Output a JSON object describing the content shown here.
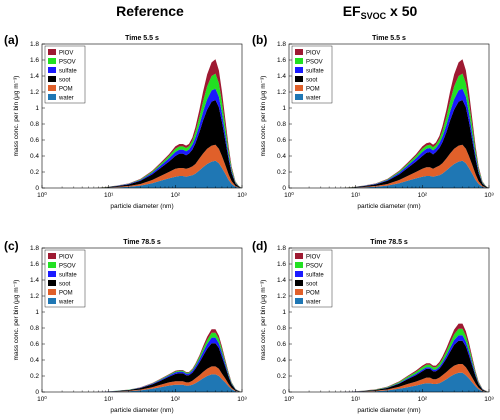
{
  "column_titles": {
    "left": "Reference",
    "right_main": "EF",
    "right_sub": "SVOC",
    "right_suffix": " x 50"
  },
  "colors": {
    "water": "#1f77b4",
    "POM": "#e0602a",
    "soot": "#000000",
    "sulfate": "#1a1aff",
    "PSOV": "#22e022",
    "PIOV": "#9e1a32"
  },
  "chart_data": [
    {
      "type": "area",
      "panel": "(a)",
      "title": "Time 5.5 s",
      "xlabel": "particle diameter (nm)",
      "ylabel": "mass conc. per bin (μg m⁻³)",
      "xscale": "log",
      "xlim": [
        1,
        1000
      ],
      "ylim": [
        0,
        1.8
      ],
      "xticks": [
        "10⁰",
        "10¹",
        "10²",
        "10³"
      ],
      "yticks": [
        "0",
        "0.2",
        "0.4",
        "0.6",
        "0.8",
        "1",
        "1.2",
        "1.4",
        "1.6",
        "1.8"
      ],
      "legend": [
        "PIOV",
        "PSOV",
        "sulfate",
        "soot",
        "POM",
        "water"
      ],
      "legend_position": "top-left",
      "diameter": [
        6,
        9,
        13,
        20,
        30,
        45,
        60,
        80,
        100,
        115,
        130,
        145,
        160,
        180,
        200,
        230,
        260,
        300,
        350,
        400,
        450,
        500,
        560,
        630,
        700,
        800,
        900,
        1000
      ],
      "series": [
        {
          "name": "water",
          "values": [
            0,
            0.003,
            0.008,
            0.015,
            0.03,
            0.06,
            0.09,
            0.12,
            0.14,
            0.15,
            0.15,
            0.14,
            0.15,
            0.16,
            0.18,
            0.22,
            0.26,
            0.3,
            0.33,
            0.34,
            0.31,
            0.25,
            0.18,
            0.1,
            0.05,
            0.015,
            0.005,
            0
          ]
        },
        {
          "name": "POM",
          "values": [
            0,
            0.002,
            0.005,
            0.01,
            0.02,
            0.04,
            0.06,
            0.08,
            0.1,
            0.1,
            0.1,
            0.1,
            0.1,
            0.11,
            0.12,
            0.15,
            0.17,
            0.19,
            0.2,
            0.2,
            0.18,
            0.15,
            0.11,
            0.07,
            0.035,
            0.01,
            0.003,
            0
          ]
        },
        {
          "name": "soot",
          "values": [
            0,
            0.004,
            0.01,
            0.02,
            0.04,
            0.07,
            0.1,
            0.13,
            0.16,
            0.18,
            0.18,
            0.17,
            0.18,
            0.21,
            0.26,
            0.33,
            0.41,
            0.49,
            0.55,
            0.56,
            0.52,
            0.43,
            0.31,
            0.19,
            0.1,
            0.03,
            0.01,
            0
          ]
        },
        {
          "name": "sulfate",
          "values": [
            0,
            0.001,
            0.003,
            0.006,
            0.01,
            0.02,
            0.03,
            0.04,
            0.05,
            0.05,
            0.05,
            0.05,
            0.05,
            0.06,
            0.07,
            0.09,
            0.11,
            0.13,
            0.14,
            0.14,
            0.13,
            0.11,
            0.08,
            0.05,
            0.025,
            0.008,
            0.002,
            0
          ]
        },
        {
          "name": "PSOV",
          "values": [
            0,
            0.001,
            0.002,
            0.004,
            0.008,
            0.015,
            0.02,
            0.03,
            0.04,
            0.04,
            0.04,
            0.04,
            0.04,
            0.05,
            0.07,
            0.1,
            0.13,
            0.16,
            0.18,
            0.19,
            0.17,
            0.14,
            0.1,
            0.06,
            0.03,
            0.01,
            0.003,
            0
          ]
        },
        {
          "name": "PIOV",
          "values": [
            0,
            0.001,
            0.002,
            0.003,
            0.006,
            0.01,
            0.015,
            0.02,
            0.03,
            0.03,
            0.03,
            0.03,
            0.03,
            0.04,
            0.06,
            0.09,
            0.12,
            0.15,
            0.17,
            0.18,
            0.16,
            0.13,
            0.09,
            0.05,
            0.025,
            0.008,
            0.002,
            0
          ]
        }
      ]
    },
    {
      "type": "area",
      "panel": "(b)",
      "title": "Time 5.5 s",
      "xlabel": "particle diameter (nm)",
      "ylabel": "mass conc. per bin (μg m⁻³)",
      "xscale": "log",
      "xlim": [
        1,
        1000
      ],
      "ylim": [
        0,
        1.8
      ],
      "xticks": [
        "10⁰",
        "10¹",
        "10²",
        "10³"
      ],
      "yticks": [
        "0",
        "0.2",
        "0.4",
        "0.6",
        "0.8",
        "1",
        "1.2",
        "1.4",
        "1.6",
        "1.8"
      ],
      "legend": [
        "PIOV",
        "PSOV",
        "sulfate",
        "soot",
        "POM",
        "water"
      ],
      "legend_position": "top-left",
      "diameter": [
        6,
        9,
        13,
        20,
        30,
        45,
        60,
        80,
        100,
        115,
        130,
        145,
        160,
        180,
        200,
        230,
        260,
        300,
        350,
        400,
        450,
        500,
        560,
        630,
        700,
        800,
        900,
        1000
      ],
      "series": [
        {
          "name": "water",
          "values": [
            0,
            0.003,
            0.008,
            0.015,
            0.03,
            0.06,
            0.09,
            0.12,
            0.14,
            0.15,
            0.15,
            0.14,
            0.15,
            0.16,
            0.18,
            0.22,
            0.26,
            0.3,
            0.33,
            0.34,
            0.31,
            0.25,
            0.18,
            0.1,
            0.05,
            0.015,
            0.005,
            0
          ]
        },
        {
          "name": "POM",
          "values": [
            0,
            0.002,
            0.005,
            0.01,
            0.02,
            0.04,
            0.06,
            0.08,
            0.1,
            0.11,
            0.11,
            0.1,
            0.11,
            0.12,
            0.13,
            0.15,
            0.17,
            0.19,
            0.2,
            0.2,
            0.18,
            0.15,
            0.11,
            0.07,
            0.035,
            0.01,
            0.003,
            0
          ]
        },
        {
          "name": "soot",
          "values": [
            0,
            0.004,
            0.01,
            0.02,
            0.04,
            0.07,
            0.1,
            0.13,
            0.16,
            0.18,
            0.19,
            0.18,
            0.19,
            0.22,
            0.26,
            0.33,
            0.41,
            0.49,
            0.55,
            0.56,
            0.52,
            0.43,
            0.31,
            0.19,
            0.1,
            0.03,
            0.01,
            0
          ]
        },
        {
          "name": "sulfate",
          "values": [
            0,
            0.001,
            0.003,
            0.006,
            0.01,
            0.02,
            0.03,
            0.04,
            0.05,
            0.05,
            0.05,
            0.05,
            0.05,
            0.06,
            0.07,
            0.09,
            0.11,
            0.13,
            0.14,
            0.14,
            0.13,
            0.11,
            0.08,
            0.05,
            0.025,
            0.008,
            0.002,
            0
          ]
        },
        {
          "name": "PSOV",
          "values": [
            0,
            0.001,
            0.002,
            0.004,
            0.008,
            0.015,
            0.02,
            0.03,
            0.04,
            0.04,
            0.04,
            0.04,
            0.04,
            0.05,
            0.07,
            0.1,
            0.13,
            0.16,
            0.18,
            0.19,
            0.17,
            0.14,
            0.1,
            0.06,
            0.03,
            0.01,
            0.003,
            0
          ]
        },
        {
          "name": "PIOV",
          "values": [
            0,
            0.001,
            0.002,
            0.003,
            0.006,
            0.01,
            0.015,
            0.02,
            0.03,
            0.03,
            0.03,
            0.03,
            0.03,
            0.04,
            0.06,
            0.09,
            0.12,
            0.15,
            0.17,
            0.18,
            0.16,
            0.13,
            0.09,
            0.05,
            0.025,
            0.008,
            0.002,
            0
          ]
        }
      ]
    },
    {
      "type": "area",
      "panel": "(c)",
      "title": "Time 78.5 s",
      "xlabel": "particle diameter (nm)",
      "ylabel": "mass conc. per bin (μg m⁻³)",
      "xscale": "log",
      "xlim": [
        1,
        1000
      ],
      "ylim": [
        0,
        1.8
      ],
      "xticks": [
        "10⁰",
        "10¹",
        "10²",
        "10³"
      ],
      "yticks": [
        "0",
        "0.2",
        "0.4",
        "0.6",
        "0.8",
        "1",
        "1.2",
        "1.4",
        "1.6",
        "1.8"
      ],
      "legend": [
        "PIOV",
        "PSOV",
        "sulfate",
        "soot",
        "POM",
        "water"
      ],
      "legend_position": "top-left",
      "diameter": [
        6,
        9,
        13,
        20,
        30,
        45,
        60,
        80,
        100,
        115,
        130,
        145,
        160,
        180,
        200,
        230,
        260,
        300,
        350,
        400,
        450,
        500,
        560,
        630,
        700,
        800,
        900,
        1000
      ],
      "series": [
        {
          "name": "water",
          "values": [
            0,
            0.002,
            0.005,
            0.01,
            0.02,
            0.04,
            0.06,
            0.08,
            0.09,
            0.09,
            0.09,
            0.08,
            0.08,
            0.09,
            0.11,
            0.14,
            0.17,
            0.2,
            0.22,
            0.22,
            0.2,
            0.16,
            0.12,
            0.07,
            0.035,
            0.01,
            0.003,
            0
          ]
        },
        {
          "name": "POM",
          "values": [
            0,
            0.001,
            0.003,
            0.005,
            0.01,
            0.02,
            0.03,
            0.04,
            0.045,
            0.045,
            0.045,
            0.04,
            0.04,
            0.05,
            0.06,
            0.07,
            0.08,
            0.09,
            0.1,
            0.1,
            0.09,
            0.07,
            0.05,
            0.03,
            0.015,
            0.005,
            0.001,
            0
          ]
        },
        {
          "name": "soot",
          "values": [
            0,
            0.002,
            0.005,
            0.01,
            0.02,
            0.035,
            0.05,
            0.07,
            0.09,
            0.1,
            0.1,
            0.09,
            0.09,
            0.1,
            0.12,
            0.16,
            0.2,
            0.25,
            0.29,
            0.29,
            0.26,
            0.21,
            0.15,
            0.09,
            0.045,
            0.015,
            0.005,
            0
          ]
        },
        {
          "name": "sulfate",
          "values": [
            0,
            0.0005,
            0.001,
            0.002,
            0.004,
            0.008,
            0.012,
            0.016,
            0.02,
            0.02,
            0.02,
            0.02,
            0.02,
            0.025,
            0.03,
            0.04,
            0.05,
            0.06,
            0.07,
            0.07,
            0.06,
            0.05,
            0.035,
            0.02,
            0.01,
            0.004,
            0.001,
            0
          ]
        },
        {
          "name": "PSOV",
          "values": [
            0,
            0.0005,
            0.001,
            0.002,
            0.003,
            0.005,
            0.008,
            0.01,
            0.012,
            0.012,
            0.012,
            0.012,
            0.012,
            0.015,
            0.02,
            0.03,
            0.04,
            0.05,
            0.06,
            0.06,
            0.055,
            0.045,
            0.03,
            0.02,
            0.01,
            0.003,
            0.001,
            0
          ]
        },
        {
          "name": "PIOV",
          "values": [
            0,
            0.0005,
            0.001,
            0.001,
            0.002,
            0.004,
            0.005,
            0.006,
            0.008,
            0.008,
            0.008,
            0.008,
            0.008,
            0.01,
            0.015,
            0.02,
            0.03,
            0.04,
            0.045,
            0.045,
            0.04,
            0.035,
            0.025,
            0.015,
            0.007,
            0.002,
            0.001,
            0
          ]
        }
      ]
    },
    {
      "type": "area",
      "panel": "(d)",
      "title": "Time 78.5 s",
      "xlabel": "particle diameter (nm)",
      "ylabel": "mass conc. per bin (μg m⁻³)",
      "xscale": "log",
      "xlim": [
        1,
        1000
      ],
      "ylim": [
        0,
        1.8
      ],
      "xticks": [
        "10⁰",
        "10¹",
        "10²",
        "10³"
      ],
      "yticks": [
        "0",
        "0.2",
        "0.4",
        "0.6",
        "0.8",
        "1",
        "1.2",
        "1.4",
        "1.6",
        "1.8"
      ],
      "legend": [
        "PIOV",
        "PSOV",
        "sulfate",
        "soot",
        "POM",
        "water"
      ],
      "legend_position": "top-left",
      "diameter": [
        6,
        9,
        13,
        20,
        30,
        45,
        60,
        80,
        100,
        115,
        130,
        145,
        160,
        180,
        200,
        230,
        260,
        300,
        350,
        400,
        450,
        500,
        560,
        630,
        700,
        800,
        900,
        1000
      ],
      "series": [
        {
          "name": "water",
          "values": [
            0,
            0.002,
            0.005,
            0.01,
            0.02,
            0.04,
            0.06,
            0.08,
            0.1,
            0.11,
            0.11,
            0.1,
            0.1,
            0.11,
            0.13,
            0.16,
            0.19,
            0.22,
            0.24,
            0.24,
            0.21,
            0.17,
            0.12,
            0.07,
            0.035,
            0.01,
            0.003,
            0
          ]
        },
        {
          "name": "POM",
          "values": [
            0,
            0.001,
            0.003,
            0.006,
            0.012,
            0.025,
            0.04,
            0.05,
            0.06,
            0.07,
            0.07,
            0.06,
            0.06,
            0.07,
            0.08,
            0.09,
            0.1,
            0.11,
            0.11,
            0.11,
            0.1,
            0.08,
            0.06,
            0.035,
            0.017,
            0.005,
            0.001,
            0
          ]
        },
        {
          "name": "soot",
          "values": [
            0,
            0.002,
            0.005,
            0.01,
            0.02,
            0.04,
            0.06,
            0.08,
            0.1,
            0.11,
            0.11,
            0.1,
            0.1,
            0.11,
            0.13,
            0.17,
            0.21,
            0.26,
            0.29,
            0.29,
            0.26,
            0.21,
            0.15,
            0.09,
            0.045,
            0.015,
            0.005,
            0
          ]
        },
        {
          "name": "sulfate",
          "values": [
            0,
            0.0005,
            0.001,
            0.002,
            0.004,
            0.008,
            0.012,
            0.016,
            0.02,
            0.02,
            0.02,
            0.02,
            0.02,
            0.025,
            0.03,
            0.04,
            0.05,
            0.06,
            0.07,
            0.07,
            0.06,
            0.05,
            0.035,
            0.02,
            0.01,
            0.004,
            0.001,
            0
          ]
        },
        {
          "name": "PSOV",
          "values": [
            0,
            0.001,
            0.002,
            0.004,
            0.007,
            0.012,
            0.018,
            0.025,
            0.03,
            0.03,
            0.03,
            0.03,
            0.03,
            0.035,
            0.04,
            0.05,
            0.06,
            0.07,
            0.08,
            0.08,
            0.07,
            0.06,
            0.04,
            0.025,
            0.012,
            0.004,
            0.001,
            0
          ]
        },
        {
          "name": "PIOV",
          "values": [
            0,
            0.0005,
            0.001,
            0.002,
            0.004,
            0.008,
            0.012,
            0.016,
            0.02,
            0.02,
            0.02,
            0.02,
            0.02,
            0.025,
            0.03,
            0.04,
            0.05,
            0.06,
            0.065,
            0.065,
            0.06,
            0.05,
            0.035,
            0.02,
            0.01,
            0.003,
            0.001,
            0
          ]
        }
      ]
    }
  ]
}
